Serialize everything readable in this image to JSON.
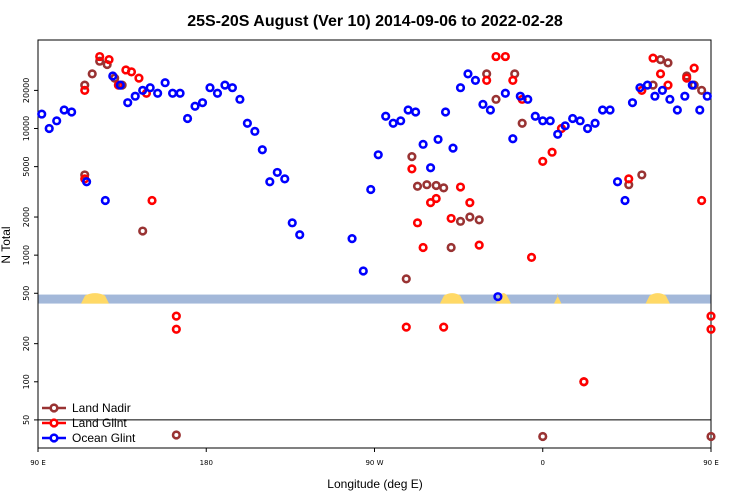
{
  "chart_data": {
    "type": "scatter",
    "title": "25S-20S August (Ver 10)   2014-09-06 to 2022-02-28",
    "xlabel": "Longitude (deg E)",
    "ylabel": "N Total",
    "x_range": [
      90,
      450
    ],
    "y_scale": "log",
    "ylim": [
      30,
      50000
    ],
    "y_ticks": [
      {
        "value": 20000,
        "label": "20000"
      },
      {
        "value": 10000,
        "label": "10000"
      },
      {
        "value": 5000,
        "label": "5000"
      },
      {
        "value": 2000,
        "label": "2000"
      },
      {
        "value": 1000,
        "label": "1000"
      },
      {
        "value": 500,
        "label": "500"
      },
      {
        "value": 200,
        "label": "200"
      },
      {
        "value": 100,
        "label": "100"
      },
      {
        "value": 50,
        "label": "50"
      }
    ],
    "x_ticks": [
      {
        "value": 90,
        "label": "90 E"
      },
      {
        "value": 180,
        "label": "180"
      },
      {
        "value": 270,
        "label": "90 W"
      },
      {
        "value": 360,
        "label": "0"
      },
      {
        "value": 450,
        "label": "90 E"
      },
      {
        "value": 540,
        "label": "180"
      }
    ],
    "legend_position": "bottom-left",
    "colors": {
      "land_nadir": "#993333",
      "land_glint": "#ff0000",
      "ocean_glint": "#0000ff",
      "land_band": "#ffd966",
      "ocean_band": "#a3b8d9"
    },
    "series": [
      {
        "name": "Land Nadir",
        "color": "#993333",
        "points": [
          [
            115,
            22000
          ],
          [
            115,
            4300
          ],
          [
            119,
            27000
          ],
          [
            123,
            34000
          ],
          [
            127,
            32000
          ],
          [
            131,
            25000
          ],
          [
            135,
            22000
          ],
          [
            146,
            1550
          ],
          [
            164,
            38
          ],
          [
            287,
            650
          ],
          [
            290,
            6000
          ],
          [
            293,
            3500
          ],
          [
            298,
            3600
          ],
          [
            303,
            3550
          ],
          [
            307,
            3400
          ],
          [
            311,
            1150
          ],
          [
            316,
            1850
          ],
          [
            321,
            2000
          ],
          [
            326,
            1900
          ],
          [
            330,
            27000
          ],
          [
            335,
            17000
          ],
          [
            345,
            27000
          ],
          [
            349,
            11000
          ],
          [
            360,
            37
          ],
          [
            382,
            100
          ],
          [
            406,
            3600
          ],
          [
            413,
            4300
          ],
          [
            419,
            22000
          ],
          [
            423,
            35000
          ],
          [
            427,
            33000
          ],
          [
            437,
            26000
          ],
          [
            441,
            22000
          ],
          [
            445,
            20000
          ],
          [
            450,
            37
          ]
        ]
      },
      {
        "name": "Land Glint",
        "color": "#ff0000",
        "points": [
          [
            115,
            20000
          ],
          [
            115,
            4000
          ],
          [
            123,
            37000
          ],
          [
            128,
            35000
          ],
          [
            133,
            22000
          ],
          [
            137,
            29000
          ],
          [
            140,
            28000
          ],
          [
            144,
            25000
          ],
          [
            148,
            19000
          ],
          [
            151,
            2700
          ],
          [
            164,
            330
          ],
          [
            164,
            260
          ],
          [
            287,
            270
          ],
          [
            290,
            4800
          ],
          [
            293,
            1800
          ],
          [
            296,
            1150
          ],
          [
            300,
            2600
          ],
          [
            303,
            2800
          ],
          [
            307,
            270
          ],
          [
            311,
            1950
          ],
          [
            316,
            3450
          ],
          [
            321,
            2600
          ],
          [
            326,
            1200
          ],
          [
            330,
            24000
          ],
          [
            335,
            37000
          ],
          [
            340,
            37000
          ],
          [
            344,
            24000
          ],
          [
            349,
            17000
          ],
          [
            354,
            960
          ],
          [
            360,
            5500
          ],
          [
            365,
            6500
          ],
          [
            370,
            10000
          ],
          [
            382,
            100
          ],
          [
            406,
            4000
          ],
          [
            413,
            20000
          ],
          [
            419,
            36000
          ],
          [
            423,
            27000
          ],
          [
            427,
            22000
          ],
          [
            437,
            25000
          ],
          [
            441,
            30000
          ],
          [
            445,
            2700
          ],
          [
            450,
            330
          ],
          [
            450,
            260
          ]
        ]
      },
      {
        "name": "Ocean Glint",
        "color": "#0000ff",
        "points": [
          [
            92,
            13000
          ],
          [
            96,
            10000
          ],
          [
            100,
            11500
          ],
          [
            104,
            14000
          ],
          [
            108,
            13500
          ],
          [
            116,
            3800
          ],
          [
            126,
            2700
          ],
          [
            130,
            26000
          ],
          [
            134,
            22000
          ],
          [
            138,
            16000
          ],
          [
            142,
            18000
          ],
          [
            146,
            20000
          ],
          [
            150,
            21000
          ],
          [
            154,
            19000
          ],
          [
            158,
            23000
          ],
          [
            162,
            19000
          ],
          [
            166,
            19000
          ],
          [
            170,
            12000
          ],
          [
            174,
            15000
          ],
          [
            178,
            16000
          ],
          [
            182,
            21000
          ],
          [
            186,
            19000
          ],
          [
            190,
            22000
          ],
          [
            194,
            21000
          ],
          [
            198,
            17000
          ],
          [
            202,
            11000
          ],
          [
            206,
            9500
          ],
          [
            210,
            6800
          ],
          [
            214,
            3800
          ],
          [
            218,
            4500
          ],
          [
            222,
            4000
          ],
          [
            226,
            1800
          ],
          [
            230,
            1450
          ],
          [
            258,
            1350
          ],
          [
            264,
            750
          ],
          [
            268,
            3300
          ],
          [
            272,
            6200
          ],
          [
            276,
            12500
          ],
          [
            280,
            11000
          ],
          [
            284,
            11500
          ],
          [
            288,
            14000
          ],
          [
            292,
            13500
          ],
          [
            296,
            7500
          ],
          [
            300,
            4900
          ],
          [
            304,
            8200
          ],
          [
            308,
            13500
          ],
          [
            312,
            7000
          ],
          [
            316,
            21000
          ],
          [
            320,
            27000
          ],
          [
            324,
            24000
          ],
          [
            328,
            15500
          ],
          [
            332,
            14000
          ],
          [
            336,
            470
          ],
          [
            340,
            19000
          ],
          [
            344,
            8300
          ],
          [
            348,
            18000
          ],
          [
            352,
            17000
          ],
          [
            356,
            12500
          ],
          [
            360,
            11500
          ],
          [
            364,
            11500
          ],
          [
            368,
            9000
          ],
          [
            372,
            10500
          ],
          [
            376,
            12000
          ],
          [
            380,
            11500
          ],
          [
            384,
            10000
          ],
          [
            388,
            11000
          ],
          [
            392,
            14000
          ],
          [
            396,
            14000
          ],
          [
            400,
            3800
          ],
          [
            404,
            2700
          ],
          [
            408,
            16000
          ],
          [
            412,
            21000
          ],
          [
            416,
            22000
          ],
          [
            420,
            18000
          ],
          [
            424,
            20000
          ],
          [
            428,
            17000
          ],
          [
            432,
            14000
          ],
          [
            436,
            18000
          ],
          [
            440,
            22000
          ],
          [
            444,
            14000
          ],
          [
            448,
            18000
          ]
        ]
      }
    ],
    "surface_band": {
      "value": 450,
      "land_ranges": [
        [
          113,
          128
        ],
        [
          305,
          318
        ],
        [
          335,
          343
        ],
        [
          366,
          370
        ],
        [
          415,
          428
        ]
      ]
    },
    "legend_entries": [
      {
        "label": "Land Nadir",
        "color": "#993333"
      },
      {
        "label": "Land Glint",
        "color": "#ff0000"
      },
      {
        "label": "Ocean Glint",
        "color": "#0000ff"
      }
    ]
  }
}
